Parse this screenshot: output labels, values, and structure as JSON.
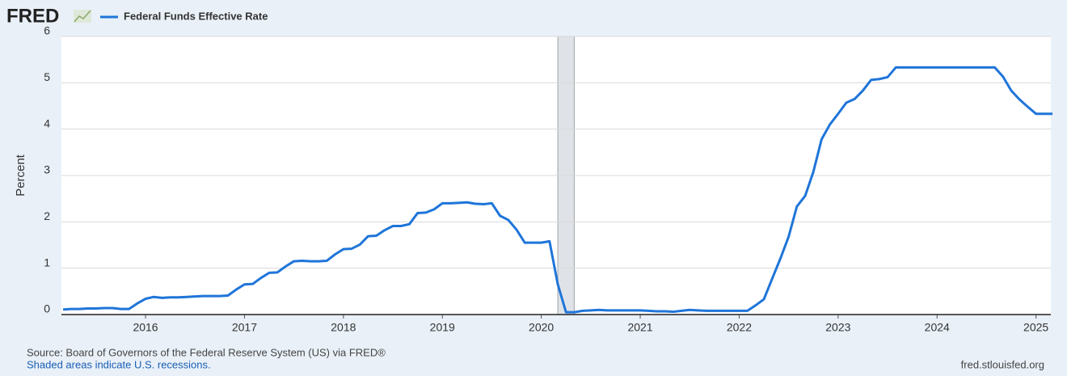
{
  "chart_data": {
    "type": "line",
    "logo": "FRED",
    "ylabel": "Percent",
    "source": "Source: Board of Governors of the Federal Reserve System (US) via FRED®",
    "note": "Shaded areas indicate U.S. recessions.",
    "site": "fred.stlouisfed.org",
    "x": [
      2015.167,
      2015.25,
      2015.333,
      2015.417,
      2015.5,
      2015.583,
      2015.667,
      2015.75,
      2015.833,
      2015.917,
      2016,
      2016.083,
      2016.167,
      2016.25,
      2016.333,
      2016.417,
      2016.5,
      2016.583,
      2016.667,
      2016.75,
      2016.833,
      2016.917,
      2017,
      2017.083,
      2017.167,
      2017.25,
      2017.333,
      2017.417,
      2017.5,
      2017.583,
      2017.667,
      2017.75,
      2017.833,
      2017.917,
      2018,
      2018.083,
      2018.167,
      2018.25,
      2018.333,
      2018.417,
      2018.5,
      2018.583,
      2018.667,
      2018.75,
      2018.833,
      2018.917,
      2019,
      2019.083,
      2019.167,
      2019.25,
      2019.333,
      2019.417,
      2019.5,
      2019.583,
      2019.667,
      2019.75,
      2019.833,
      2019.917,
      2020,
      2020.083,
      2020.167,
      2020.25,
      2020.333,
      2020.417,
      2020.5,
      2020.583,
      2020.667,
      2020.75,
      2020.833,
      2020.917,
      2021,
      2021.083,
      2021.167,
      2021.25,
      2021.333,
      2021.417,
      2021.5,
      2021.583,
      2021.667,
      2021.75,
      2021.833,
      2021.917,
      2022,
      2022.083,
      2022.167,
      2022.25,
      2022.333,
      2022.417,
      2022.5,
      2022.583,
      2022.667,
      2022.75,
      2022.833,
      2022.917,
      2023,
      2023.083,
      2023.167,
      2023.25,
      2023.333,
      2023.417,
      2023.5,
      2023.583,
      2023.667,
      2023.75,
      2023.833,
      2023.917,
      2024,
      2024.083,
      2024.167,
      2024.25,
      2024.333,
      2024.417,
      2024.5,
      2024.583,
      2024.667,
      2024.75,
      2024.833,
      2024.917,
      2025,
      2025.083,
      2025.167
    ],
    "series": [
      {
        "name": "Federal Funds Effective Rate",
        "color": "#1f75d9",
        "values": [
          0.11,
          0.12,
          0.12,
          0.13,
          0.13,
          0.14,
          0.14,
          0.12,
          0.12,
          0.24,
          0.34,
          0.38,
          0.36,
          0.37,
          0.37,
          0.38,
          0.39,
          0.4,
          0.4,
          0.4,
          0.41,
          0.54,
          0.65,
          0.66,
          0.79,
          0.9,
          0.91,
          1.04,
          1.15,
          1.16,
          1.15,
          1.15,
          1.16,
          1.3,
          1.41,
          1.42,
          1.51,
          1.69,
          1.7,
          1.82,
          1.91,
          1.91,
          1.95,
          2.19,
          2.2,
          2.27,
          2.4,
          2.4,
          2.41,
          2.42,
          2.39,
          2.38,
          2.4,
          2.13,
          2.04,
          1.83,
          1.55,
          1.55,
          1.55,
          1.58,
          0.65,
          0.05,
          0.05,
          0.08,
          0.09,
          0.1,
          0.09,
          0.09,
          0.09,
          0.09,
          0.09,
          0.08,
          0.07,
          0.07,
          0.06,
          0.08,
          0.1,
          0.09,
          0.08,
          0.08,
          0.08,
          0.08,
          0.08,
          0.08,
          0.2,
          0.33,
          0.77,
          1.21,
          1.68,
          2.33,
          2.56,
          3.08,
          3.78,
          4.1,
          4.33,
          4.57,
          4.65,
          4.83,
          5.06,
          5.08,
          5.12,
          5.33,
          5.33,
          5.33,
          5.33,
          5.33,
          5.33,
          5.33,
          5.33,
          5.33,
          5.33,
          5.33,
          5.33,
          5.33,
          5.13,
          4.83,
          4.64,
          4.48,
          4.33,
          4.33,
          4.33
        ]
      }
    ],
    "recessions": [
      [
        2020.167,
        2020.333
      ]
    ],
    "xlim": [
      2015.15,
      2025.15
    ],
    "xticks": [
      2016,
      2017,
      2018,
      2019,
      2020,
      2021,
      2022,
      2023,
      2024,
      2025
    ],
    "ylim": [
      0,
      6
    ],
    "yticks": [
      0,
      1,
      2,
      3,
      4,
      5,
      6
    ],
    "grid": true
  }
}
